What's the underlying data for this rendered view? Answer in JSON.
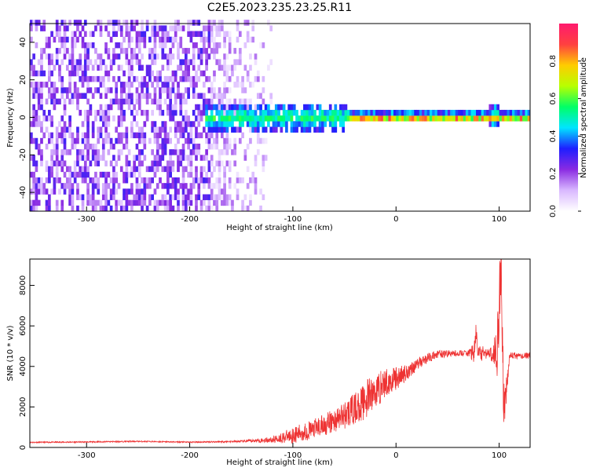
{
  "title": "C2E5.2023.235.23.25.R11",
  "chart_data": [
    {
      "type": "heatmap",
      "xlabel": "Height of straight line (km)",
      "ylabel": "Frequency (Hz)",
      "xlim": [
        -355,
        130
      ],
      "ylim": [
        -50,
        50
      ],
      "x_ticks": [
        -300,
        -200,
        -100,
        0,
        100
      ],
      "y_ticks": [
        -40,
        -20,
        0,
        20,
        40
      ],
      "colorbar": {
        "label": "Normalized spectral amplitude",
        "range": [
          0,
          1
        ],
        "ticks": [
          "0.0",
          "0.2",
          "0.4",
          "0.6",
          "0.8"
        ],
        "colors": [
          "#ffffff",
          "#d9b8ff",
          "#8a2be2",
          "#1e1eff",
          "#00e5ff",
          "#00ff66",
          "#b8ff00",
          "#ffcc00",
          "#ff4040",
          "#ff1a6e"
        ]
      },
      "description_regions": [
        {
          "x": [
            -355,
            -160
          ],
          "y": [
            -50,
            50
          ],
          "amplitude": 0.15
        },
        {
          "x": [
            -185,
            -45
          ],
          "y": [
            -8,
            8
          ],
          "amplitude": 0.35
        },
        {
          "x": [
            -45,
            130
          ],
          "y": [
            -3,
            3
          ],
          "amplitude": 0.7
        }
      ]
    },
    {
      "type": "line",
      "xlabel": "Height of straight line (km)",
      "ylabel": "SNR (10 * v/v)",
      "xlim": [
        -355,
        130
      ],
      "ylim": [
        0,
        9300
      ],
      "x_ticks": [
        -300,
        -200,
        -100,
        0,
        100
      ],
      "y_ticks": [
        0,
        2000,
        4000,
        6000,
        8000
      ],
      "series": [
        {
          "color": "#ee3333",
          "x": [
            -355,
            -300,
            -250,
            -200,
            -150,
            -120,
            -100,
            -80,
            -60,
            -40,
            -30,
            -20,
            -10,
            0,
            10,
            20,
            30,
            40,
            60,
            70,
            76,
            78,
            80,
            90,
            95,
            98,
            100,
            102,
            103,
            105,
            110,
            120,
            130
          ],
          "y": [
            250,
            270,
            300,
            260,
            300,
            380,
            600,
            900,
            1300,
            1900,
            2300,
            2800,
            3200,
            3400,
            3700,
            4100,
            4400,
            4600,
            4650,
            4650,
            4700,
            5600,
            4600,
            4650,
            4700,
            5000,
            7000,
            9300,
            4600,
            1500,
            4550,
            4500,
            4550
          ],
          "noise": [
            30,
            30,
            30,
            30,
            50,
            150,
            400,
            500,
            600,
            800,
            900,
            1000,
            700,
            600,
            400,
            300,
            250,
            200,
            150,
            150,
            600,
            700,
            500,
            200,
            600,
            1500,
            2500,
            1200,
            1800,
            1200,
            150,
            150,
            150
          ]
        }
      ]
    }
  ]
}
